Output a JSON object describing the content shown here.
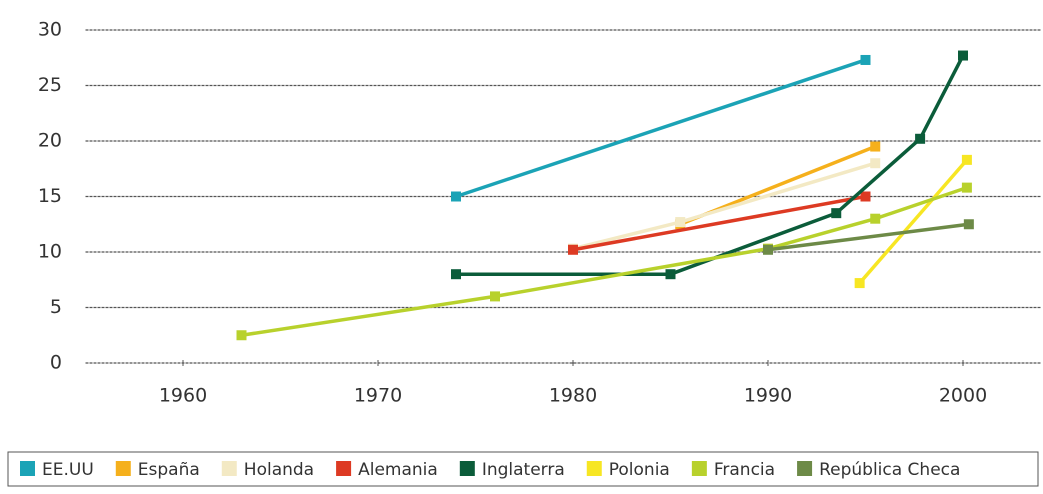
{
  "chart_data": {
    "type": "line",
    "xlim": [
      1955,
      2004
    ],
    "xticks": [
      1960,
      1970,
      1980,
      1990,
      2000
    ],
    "ylim": [
      0,
      30
    ],
    "yticks": [
      0,
      5,
      10,
      15,
      20,
      25,
      30
    ],
    "grid": true,
    "legend": "bottom",
    "series": [
      {
        "name": "EE.UU",
        "color": "#1ba3b6",
        "x": [
          1974,
          1995
        ],
        "values": [
          15,
          27.3
        ]
      },
      {
        "name": "España",
        "color": "#f5b01c",
        "x": [
          1985.5,
          1995.5
        ],
        "values": [
          12.5,
          19.5
        ]
      },
      {
        "name": "Holanda",
        "color": "#f3e9c4",
        "x": [
          1980,
          1985.5,
          1995.5
        ],
        "values": [
          10.3,
          12.7,
          18
        ]
      },
      {
        "name": "Alemania",
        "color": "#dd3a23",
        "x": [
          1980,
          1995
        ],
        "values": [
          10.2,
          15
        ]
      },
      {
        "name": "Inglaterra",
        "color": "#0b5c3a",
        "x": [
          1974,
          1985,
          1993.5,
          1997.8,
          2000
        ],
        "values": [
          8,
          8,
          13.5,
          20.2,
          27.7
        ]
      },
      {
        "name": "Polonia",
        "color": "#f7e623",
        "x": [
          1994.7,
          2000.2
        ],
        "values": [
          7.2,
          18.3
        ]
      },
      {
        "name": "Francia",
        "color": "#b8d12c",
        "x": [
          1963,
          1976,
          1990,
          1995.5,
          2000.2
        ],
        "values": [
          2.5,
          6,
          10.3,
          13,
          15.8
        ]
      },
      {
        "name": "República Checa",
        "color": "#6d8a47",
        "x": [
          1990,
          2000.3
        ],
        "values": [
          10.2,
          12.5
        ]
      }
    ]
  }
}
